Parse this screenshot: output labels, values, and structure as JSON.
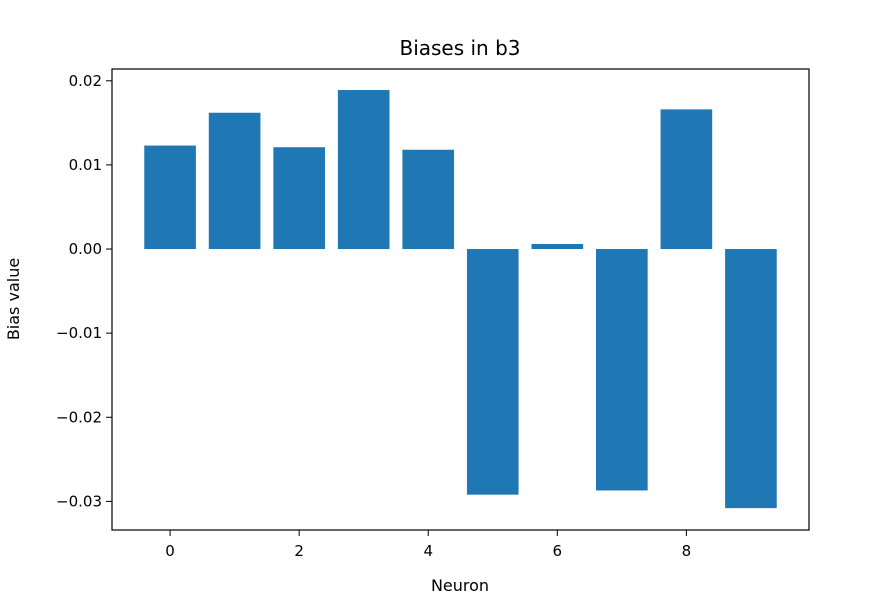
{
  "chart_data": {
    "type": "bar",
    "title": "Biases in b3",
    "xlabel": "Neuron",
    "ylabel": "Bias value",
    "x": [
      0,
      1,
      2,
      3,
      4,
      5,
      6,
      7,
      8,
      9
    ],
    "values": [
      0.0123,
      0.0162,
      0.0121,
      0.0189,
      0.0118,
      -0.0292,
      0.0006,
      -0.0287,
      0.0166,
      -0.0308
    ],
    "xlim": [
      -0.9,
      9.9
    ],
    "ylim": [
      -0.0334,
      0.0214
    ],
    "xticks": [
      0,
      2,
      4,
      6,
      8
    ],
    "xtick_labels": [
      "0",
      "2",
      "4",
      "6",
      "8"
    ],
    "yticks": [
      0.02,
      0.01,
      0.0,
      -0.01,
      -0.02,
      -0.03
    ],
    "ytick_labels": [
      "0.02",
      "0.01",
      "0.00",
      "−0.01",
      "−0.02",
      "−0.03"
    ],
    "bar_color": "#1f77b4",
    "grid": false,
    "legend": "none"
  }
}
